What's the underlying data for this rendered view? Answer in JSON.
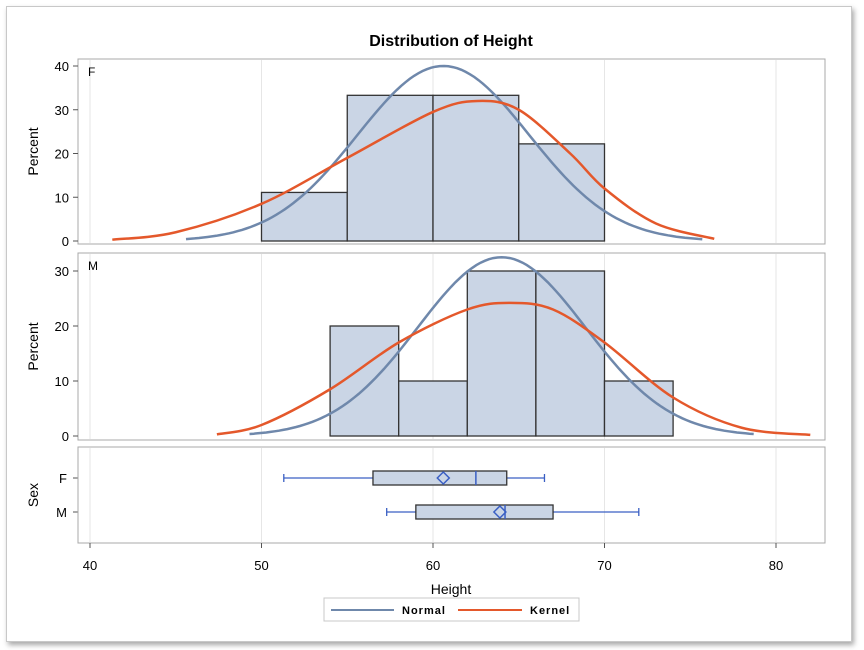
{
  "chart_data": {
    "type": "histogram-panel",
    "title": "Distribution of Height",
    "xlabel": "Height",
    "xlim": [
      40,
      82
    ],
    "xticks": [
      "40",
      "50",
      "60",
      "70",
      "80"
    ],
    "colors": {
      "bar": "#cad5e5",
      "bar_edge": "#333333",
      "normal": "#6f88ab",
      "kernel": "#e4582b",
      "box_line": "#3a5fc4"
    },
    "legend": {
      "position": "bottom",
      "entries": [
        {
          "name": "Normal"
        },
        {
          "name": "Kernel"
        }
      ]
    },
    "panels": [
      {
        "label": "F",
        "ylabel": "Percent",
        "ylim": [
          0,
          41
        ],
        "yticks": [
          "0",
          "10",
          "20",
          "30",
          "40"
        ],
        "bins": [
          {
            "x0": 50,
            "x1": 55,
            "value": 11.1
          },
          {
            "x0": 55,
            "x1": 60,
            "value": 33.3
          },
          {
            "x0": 60,
            "x1": 65,
            "value": 33.3
          },
          {
            "x0": 65,
            "x1": 70,
            "value": 22.2
          }
        ],
        "normal": {
          "mean": 60.6,
          "sd": 5.0,
          "peak": 40,
          "range": [
            45.6,
            75.7
          ]
        },
        "kernel": [
          [
            41.3,
            0.3
          ],
          [
            45,
            2
          ],
          [
            50,
            8.5
          ],
          [
            55,
            19
          ],
          [
            60,
            29.5
          ],
          [
            62.6,
            32
          ],
          [
            65,
            30
          ],
          [
            68,
            20
          ],
          [
            70,
            12
          ],
          [
            73,
            4
          ],
          [
            76.4,
            0.5
          ]
        ]
      },
      {
        "label": "M",
        "ylabel": "Percent",
        "ylim": [
          0,
          33
        ],
        "yticks": [
          "0",
          "10",
          "20",
          "30"
        ],
        "bins": [
          {
            "x0": 54,
            "x1": 58,
            "value": 20
          },
          {
            "x0": 58,
            "x1": 62,
            "value": 10
          },
          {
            "x0": 62,
            "x1": 66,
            "value": 30
          },
          {
            "x0": 66,
            "x1": 70,
            "value": 30
          },
          {
            "x0": 70,
            "x1": 74,
            "value": 10
          }
        ],
        "normal": {
          "mean": 64.0,
          "sd": 4.9,
          "peak": 32.5,
          "range": [
            49.3,
            78.7
          ]
        },
        "kernel": [
          [
            47.4,
            0.3
          ],
          [
            50,
            2
          ],
          [
            54,
            8.5
          ],
          [
            58,
            17
          ],
          [
            62,
            23
          ],
          [
            64.5,
            24.2
          ],
          [
            67,
            23
          ],
          [
            70,
            17
          ],
          [
            74,
            7
          ],
          [
            78,
            1.5
          ],
          [
            82,
            0.2
          ]
        ]
      }
    ],
    "boxplot": {
      "ylabel": "Sex",
      "groups": [
        {
          "label": "F",
          "min": 51.3,
          "q1": 56.5,
          "median": 62.5,
          "q3": 64.3,
          "max": 66.5,
          "mean": 60.6
        },
        {
          "label": "M",
          "min": 57.3,
          "q1": 59.0,
          "median": 64.2,
          "q3": 67.0,
          "max": 72.0,
          "mean": 63.9
        }
      ]
    }
  }
}
